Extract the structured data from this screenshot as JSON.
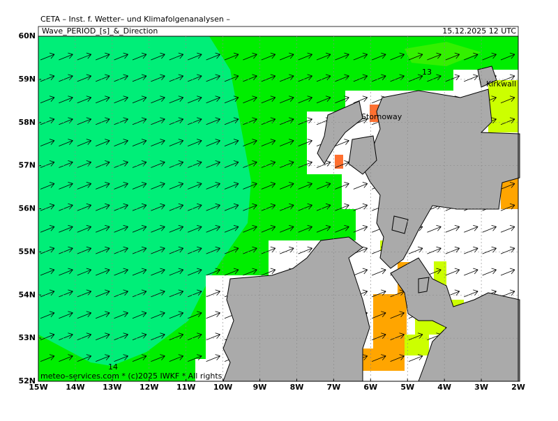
{
  "header": {
    "title": "CETA – Inst. f. Wetter– und Klimafolgenanalysen –",
    "parameter": "Wave_PERIOD_[s]_&_Direction",
    "valid_time": "15.12.2025 12 UTC"
  },
  "axes": {
    "lat_labels": [
      "60N",
      "59N",
      "58N",
      "57N",
      "56N",
      "55N",
      "54N",
      "53N",
      "52N"
    ],
    "lon_labels": [
      "15W",
      "14W",
      "13W",
      "12W",
      "11W",
      "10W",
      "9W",
      "8W",
      "7W",
      "6W",
      "5W",
      "4W",
      "3W",
      "2W"
    ]
  },
  "contour_labels": [
    "13",
    "14"
  ],
  "places": [
    "Stornoway",
    "Kirkwall"
  ],
  "footer": "meteo–services.com * (c)2025 IWKF * All rights"
}
